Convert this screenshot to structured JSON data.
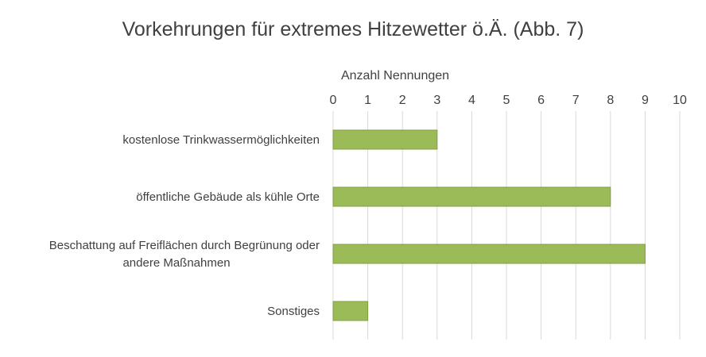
{
  "chart_data": {
    "type": "bar",
    "orientation": "horizontal",
    "title": "Vorkehrungen für extremes Hitzewetter ö.Ä. (Abb. 7)",
    "xlabel": "Anzahl Nennungen",
    "ylabel": "",
    "x_axis_position": "top",
    "xlim": [
      0,
      10
    ],
    "xticks": [
      0,
      1,
      2,
      3,
      4,
      5,
      6,
      7,
      8,
      9,
      10
    ],
    "grid": true,
    "categories": [
      [
        "kostenlose Trinkwassermöglichkeiten"
      ],
      [
        "öffentliche Gebäude als kühle Orte"
      ],
      [
        "Beschattung auf Freiflächen durch Begrünung oder",
        "andere Maßnahmen"
      ],
      [
        "Sonstiges"
      ]
    ],
    "values": [
      3,
      8,
      9,
      1
    ],
    "colors": {
      "bar": "#9bbb59",
      "grid": "#d9d9d9",
      "text": "#404040"
    }
  }
}
